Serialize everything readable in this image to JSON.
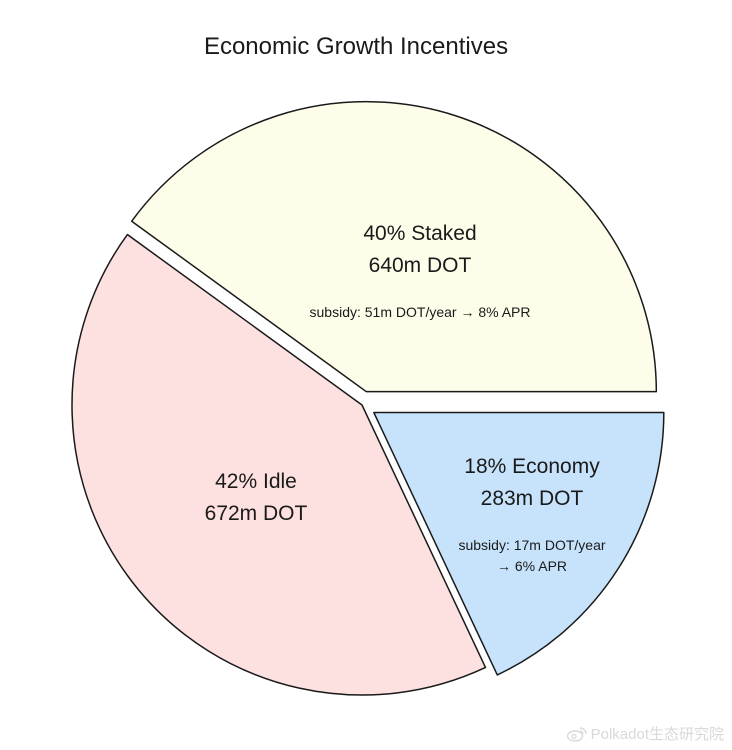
{
  "title": "Economic Growth Incentives",
  "chart_data": {
    "type": "pie",
    "title": "Economic Growth Incentives",
    "total_unit": "m DOT",
    "slices": [
      {
        "name": "Staked",
        "percent": 40,
        "amount": 640,
        "label_lines": [
          "40% Staked",
          "640m DOT"
        ],
        "note_lines": [
          "subsidy: 51m DOT/year → 8% APR"
        ],
        "color": "#fdfdea",
        "exploded": true
      },
      {
        "name": "Economy",
        "percent": 18,
        "amount": 283,
        "label_lines": [
          "18% Economy",
          "283m DOT"
        ],
        "note_lines": [
          "subsidy: 17m DOT/year",
          "→ 6% APR"
        ],
        "color": "#c6e3fb",
        "exploded": true
      },
      {
        "name": "Idle",
        "percent": 42,
        "amount": 672,
        "label_lines": [
          "42% Idle",
          "672m DOT"
        ],
        "note_lines": [],
        "color": "#fde0e0",
        "exploded": false
      }
    ],
    "start_angle_deg": 0,
    "direction": "clockwise",
    "stroke_color": "#1a1a1a",
    "legend": "none",
    "grid": false
  },
  "watermark": {
    "text": "Polkadot生态研究院",
    "icon": "weibo-icon"
  }
}
